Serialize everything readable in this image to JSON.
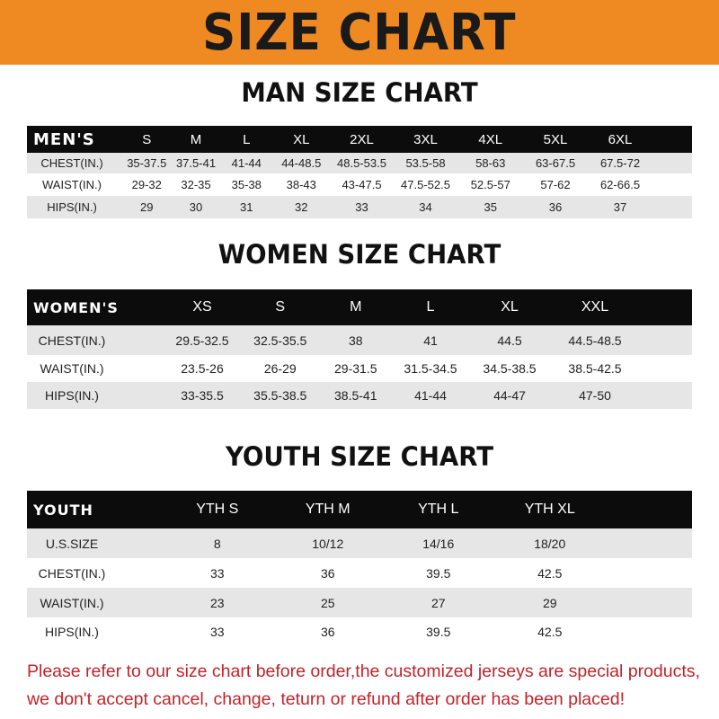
{
  "title": "SIZE CHART",
  "colors": {
    "banner": "#ef8a22",
    "header_row": "#0c0c0c",
    "stripe": "#e6e6e6",
    "note": "#c0242a"
  },
  "men": {
    "title": "MAN SIZE CHART",
    "header": [
      "MEN'S",
      "S",
      "M",
      "L",
      "XL",
      "2XL",
      "3XL",
      "4XL",
      "5XL",
      "6XL"
    ],
    "rows": [
      [
        "CHEST(IN.)",
        "35-37.5",
        "37.5-41",
        "41-44",
        "44-48.5",
        "48.5-53.5",
        "53.5-58",
        "58-63",
        "63-67.5",
        "67.5-72"
      ],
      [
        "WAIST(IN.)",
        "29-32",
        "32-35",
        "35-38",
        "38-43",
        "43-47.5",
        "47.5-52.5",
        "52.5-57",
        "57-62",
        "62-66.5"
      ],
      [
        "HIPS(IN.)",
        "29",
        "30",
        "31",
        "32",
        "33",
        "34",
        "35",
        "36",
        "37"
      ]
    ]
  },
  "women": {
    "title": "WOMEN SIZE CHART",
    "header": [
      "WOMEN'S",
      "XS",
      "S",
      "M",
      "L",
      "XL",
      "XXL"
    ],
    "rows": [
      [
        "CHEST(IN.)",
        "29.5-32.5",
        "32.5-35.5",
        "38",
        "41",
        "44.5",
        "44.5-48.5"
      ],
      [
        "WAIST(IN.)",
        "23.5-26",
        "26-29",
        "29-31.5",
        "31.5-34.5",
        "34.5-38.5",
        "38.5-42.5"
      ],
      [
        "HIPS(IN.)",
        "33-35.5",
        "35.5-38.5",
        "38.5-41",
        "41-44",
        "44-47",
        "47-50"
      ]
    ]
  },
  "youth": {
    "title": "YOUTH SIZE CHART",
    "header": [
      "YOUTH",
      "YTH S",
      "YTH M",
      "YTH L",
      "YTH XL"
    ],
    "rows": [
      [
        "U.S.SIZE",
        "8",
        "10/12",
        "14/16",
        "18/20"
      ],
      [
        "CHEST(IN.)",
        "33",
        "36",
        "39.5",
        "42.5"
      ],
      [
        "WAIST(IN.)",
        "23",
        "25",
        "27",
        "29"
      ],
      [
        "HIPS(IN.)",
        "33",
        "36",
        "39.5",
        "42.5"
      ]
    ]
  },
  "note": {
    "line1": "Please refer to our size chart before order,the customized jerseys are special products,",
    "line2": "we don't accept cancel, change, teturn or refund after order has been placed!"
  }
}
